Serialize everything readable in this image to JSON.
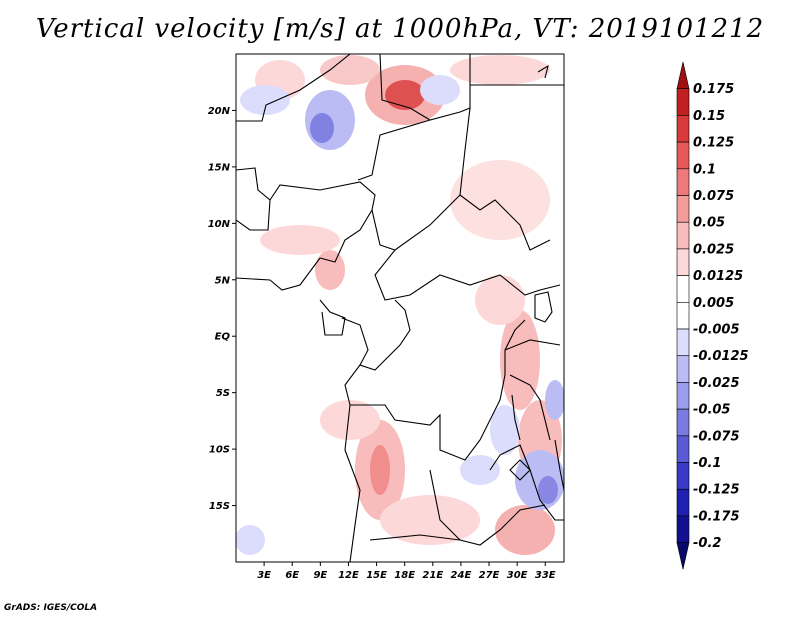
{
  "title": "Vertical velocity [m/s] at 1000hPa, VT: 2019101212",
  "credit": "GrADS: IGES/COLA",
  "map": {
    "lat_labels": [
      "20N",
      "15N",
      "10N",
      "5N",
      "EQ",
      "5S",
      "10S",
      "15S"
    ],
    "lon_labels": [
      "3E",
      "6E",
      "9E",
      "12E",
      "15E",
      "18E",
      "21E",
      "24E",
      "27E",
      "30E",
      "33E"
    ],
    "lon_range": [
      0,
      35
    ],
    "lat_range": [
      -20,
      25
    ]
  },
  "colorbar": {
    "levels": [
      "0.175",
      "0.15",
      "0.125",
      "0.1",
      "0.075",
      "0.05",
      "0.025",
      "0.0125",
      "0.005",
      "-0.005",
      "-0.0125",
      "-0.025",
      "-0.05",
      "-0.075",
      "-0.1",
      "-0.125",
      "-0.175",
      "-0.2"
    ],
    "colors": [
      "#a01010",
      "#c02020",
      "#d83a3a",
      "#e45a5a",
      "#ec7a7a",
      "#f29c9c",
      "#f8bcbc",
      "#fcd8d8",
      "#ffffff",
      "#ffffff",
      "#dcdcfc",
      "#bcbcf4",
      "#9c9cec",
      "#7a7ae0",
      "#5a5ad4",
      "#3a3ac4",
      "#2020b0",
      "#101090",
      "#0a0a6a"
    ]
  }
}
